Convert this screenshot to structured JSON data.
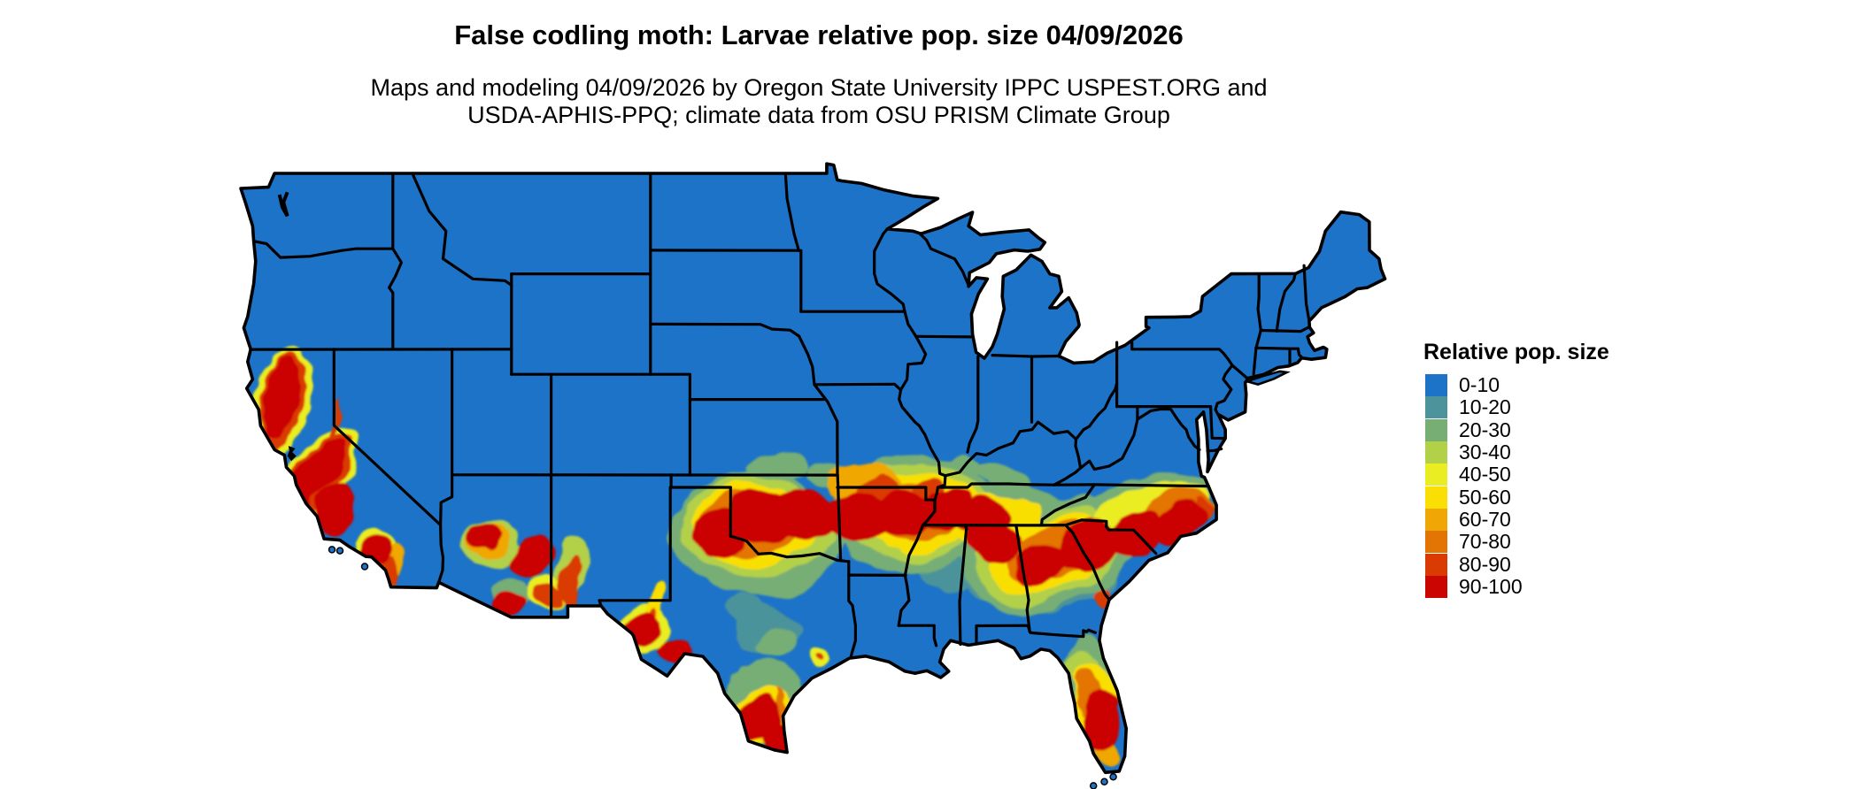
{
  "title": "False codling moth: Larvae relative pop. size 04/09/2026",
  "subtitle": {
    "line1": "Maps and modeling 04/09/2026 by Oregon State University IPPC USPEST.ORG and",
    "line2": "USDA-APHIS-PPQ; climate data from OSU PRISM Climate Group"
  },
  "legend": {
    "title": "Relative pop. size",
    "entries": [
      {
        "label": "0-10",
        "color": "#1D73C8"
      },
      {
        "label": "10-20",
        "color": "#4C939B"
      },
      {
        "label": "20-30",
        "color": "#77AE74"
      },
      {
        "label": "30-40",
        "color": "#B3D049"
      },
      {
        "label": "40-50",
        "color": "#E9ED21"
      },
      {
        "label": "50-60",
        "color": "#F9DF04"
      },
      {
        "label": "60-70",
        "color": "#F0A705"
      },
      {
        "label": "70-80",
        "color": "#E37504"
      },
      {
        "label": "80-90",
        "color": "#DA3B03"
      },
      {
        "label": "90-100",
        "color": "#CB0502"
      }
    ]
  },
  "map": {
    "land_color": "#1D73C8",
    "border_color": "#000000",
    "water_color": "#FFFFFF",
    "hotspot_format": [
      "lon",
      "lat",
      "radius_x_deg",
      "radius_y_deg",
      "rotate_deg",
      "legend_level_index"
    ],
    "hotspots": [
      [
        -122.6,
        40.0,
        1.35,
        2.3,
        14,
        4
      ],
      [
        -122.6,
        40.05,
        1.0,
        2.0,
        14,
        8
      ],
      [
        -122.65,
        40.1,
        0.8,
        1.75,
        14,
        9
      ],
      [
        -120.9,
        36.9,
        1.45,
        2.3,
        37,
        4
      ],
      [
        -120.9,
        36.9,
        1.15,
        2.0,
        37,
        8
      ],
      [
        -120.95,
        36.95,
        0.9,
        1.75,
        37,
        9
      ],
      [
        -119.9,
        35.6,
        0.9,
        1.1,
        20,
        9
      ],
      [
        -118.1,
        33.9,
        1.15,
        0.85,
        -15,
        4
      ],
      [
        -118.1,
        33.9,
        0.9,
        0.65,
        -15,
        9
      ],
      [
        -117.2,
        33.0,
        0.55,
        0.75,
        10,
        8
      ],
      [
        -116.9,
        33.6,
        0.5,
        0.6,
        0,
        6
      ],
      [
        -119.9,
        39.2,
        0.2,
        0.9,
        12,
        8
      ],
      [
        -112.2,
        34.2,
        1.5,
        1.0,
        -28,
        3
      ],
      [
        -112.3,
        34.3,
        1.15,
        0.75,
        -28,
        6
      ],
      [
        -112.5,
        34.45,
        0.9,
        0.6,
        -30,
        9
      ],
      [
        -110.1,
        33.7,
        1.2,
        0.6,
        -12,
        9
      ],
      [
        -111.1,
        32.3,
        1.0,
        0.7,
        -15,
        2
      ],
      [
        -111.2,
        31.9,
        0.85,
        0.55,
        -10,
        9
      ],
      [
        -109.3,
        32.4,
        1.0,
        0.8,
        0,
        4
      ],
      [
        -109.2,
        32.3,
        0.75,
        0.6,
        0,
        8
      ],
      [
        -107.9,
        33.3,
        0.8,
        1.2,
        5,
        3
      ],
      [
        -107.95,
        32.7,
        0.55,
        1.0,
        5,
        8
      ],
      [
        -104.1,
        31.6,
        0.45,
        1.1,
        20,
        5
      ],
      [
        -104.3,
        31.2,
        0.3,
        0.7,
        25,
        8
      ],
      [
        -104.4,
        30.9,
        1.3,
        1.05,
        35,
        4
      ],
      [
        -104.5,
        30.9,
        0.95,
        0.8,
        35,
        9
      ],
      [
        -102.7,
        29.95,
        0.9,
        0.45,
        5,
        9
      ],
      [
        -98.8,
        34.6,
        4.3,
        2.5,
        6,
        2
      ],
      [
        -98.8,
        34.9,
        3.9,
        2.0,
        5,
        3
      ],
      [
        -98.9,
        35.0,
        3.3,
        1.6,
        5,
        5
      ],
      [
        -99.2,
        35.0,
        2.6,
        1.2,
        6,
        7
      ],
      [
        -100.6,
        34.7,
        1.5,
        0.9,
        10,
        9
      ],
      [
        -98.3,
        35.3,
        1.8,
        1.0,
        3,
        9
      ],
      [
        -96.2,
        35.45,
        1.6,
        1.0,
        0,
        9
      ],
      [
        -90.8,
        35.4,
        4.2,
        2.3,
        0,
        2
      ],
      [
        -90.8,
        35.5,
        3.8,
        1.85,
        0,
        3
      ],
      [
        -90.6,
        35.5,
        3.2,
        1.5,
        0,
        5
      ],
      [
        -90.6,
        35.5,
        2.5,
        1.15,
        0,
        7
      ],
      [
        -93.6,
        35.4,
        1.7,
        1.05,
        0,
        9
      ],
      [
        -91.3,
        35.45,
        1.6,
        0.95,
        0,
        9
      ],
      [
        -89.2,
        35.6,
        1.5,
        0.85,
        0,
        9
      ],
      [
        -93.2,
        36.7,
        1.9,
        0.8,
        5,
        6
      ],
      [
        -92.6,
        36.4,
        1.2,
        0.6,
        0,
        8
      ],
      [
        -86.3,
        35.0,
        3.0,
        1.7,
        -12,
        2
      ],
      [
        -86.6,
        35.1,
        2.2,
        1.1,
        -10,
        5
      ],
      [
        -87.2,
        35.25,
        1.3,
        0.75,
        -8,
        9
      ],
      [
        -97.6,
        37.3,
        1.5,
        0.55,
        0,
        2
      ],
      [
        -95.0,
        37.0,
        1.2,
        0.5,
        0,
        2
      ],
      [
        -88.3,
        37.2,
        1.0,
        0.45,
        5,
        2
      ],
      [
        -86.3,
        37.0,
        1.3,
        0.5,
        5,
        2
      ],
      [
        -89.9,
        36.3,
        0.8,
        0.5,
        -20,
        8
      ],
      [
        -84.0,
        33.7,
        4.3,
        2.0,
        -17,
        2
      ],
      [
        -84.0,
        33.7,
        3.7,
        1.65,
        -17,
        3
      ],
      [
        -83.9,
        33.75,
        3.1,
        1.35,
        -17,
        5
      ],
      [
        -83.8,
        33.85,
        2.5,
        1.05,
        -17,
        7
      ],
      [
        -86.6,
        34.3,
        1.35,
        0.8,
        -10,
        9
      ],
      [
        -84.4,
        33.45,
        1.4,
        0.85,
        -18,
        9
      ],
      [
        -81.9,
        34.15,
        1.6,
        0.95,
        -22,
        9
      ],
      [
        -79.6,
        34.55,
        1.4,
        0.8,
        -28,
        9
      ],
      [
        -77.5,
        35.6,
        1.8,
        0.7,
        -10,
        7
      ],
      [
        -77.3,
        35.05,
        1.5,
        0.7,
        -25,
        9
      ],
      [
        -76.2,
        35.6,
        0.5,
        0.4,
        -40,
        8
      ],
      [
        -79.7,
        35.5,
        2.6,
        0.9,
        -28,
        4
      ],
      [
        -79.7,
        35.75,
        3.0,
        1.1,
        -28,
        2
      ],
      [
        -77.6,
        36.6,
        1.9,
        0.45,
        0,
        2
      ],
      [
        -77.6,
        36.15,
        1.9,
        0.5,
        0,
        4
      ],
      [
        -83.2,
        32.4,
        2.5,
        0.75,
        -12,
        1
      ],
      [
        -88.9,
        33.3,
        1.5,
        0.9,
        8,
        1
      ],
      [
        -86.9,
        32.6,
        1.3,
        0.7,
        -10,
        1
      ],
      [
        -98.4,
        28.2,
        2.0,
        1.5,
        10,
        2
      ],
      [
        -98.45,
        27.4,
        1.55,
        1.25,
        10,
        5
      ],
      [
        -98.6,
        27.35,
        1.1,
        0.95,
        10,
        9
      ],
      [
        -97.7,
        26.3,
        0.55,
        0.7,
        0,
        9
      ],
      [
        -97.35,
        27.5,
        0.22,
        1.1,
        -14,
        7
      ],
      [
        -98.2,
        30.9,
        1.8,
        0.9,
        8,
        1
      ],
      [
        -97.6,
        30.3,
        0.9,
        0.55,
        0,
        2
      ],
      [
        -99.3,
        31.5,
        1.1,
        0.6,
        10,
        1
      ],
      [
        -95.5,
        29.7,
        0.5,
        0.35,
        0,
        4
      ],
      [
        -95.45,
        29.72,
        0.2,
        0.14,
        0,
        8
      ],
      [
        -81.9,
        28.6,
        1.35,
        1.9,
        7,
        2
      ],
      [
        -81.7,
        28.0,
        1.05,
        1.5,
        7,
        5
      ],
      [
        -81.95,
        28.35,
        0.6,
        0.85,
        10,
        7
      ],
      [
        -81.35,
        27.2,
        0.85,
        1.2,
        4,
        9
      ],
      [
        -80.95,
        25.95,
        0.6,
        0.55,
        0,
        6
      ],
      [
        -82.05,
        29.4,
        0.8,
        0.55,
        -5,
        3
      ],
      [
        -81.25,
        32.1,
        0.4,
        0.45,
        0,
        8
      ]
    ]
  }
}
